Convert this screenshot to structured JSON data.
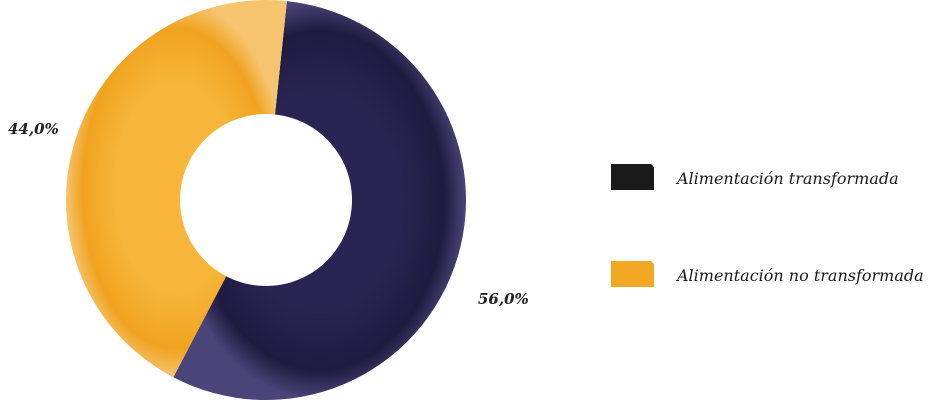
{
  "chart_data": {
    "type": "pie",
    "variant": "donut",
    "title": "",
    "series": [
      {
        "name": "Alimentación transformada",
        "value": 56.0,
        "label": "56,0%",
        "color": "#1f1a3f"
      },
      {
        "name": "Alimentación no transformada",
        "value": 44.0,
        "label": "44,0%",
        "color": "#f2a823"
      }
    ],
    "legend_position": "right"
  }
}
